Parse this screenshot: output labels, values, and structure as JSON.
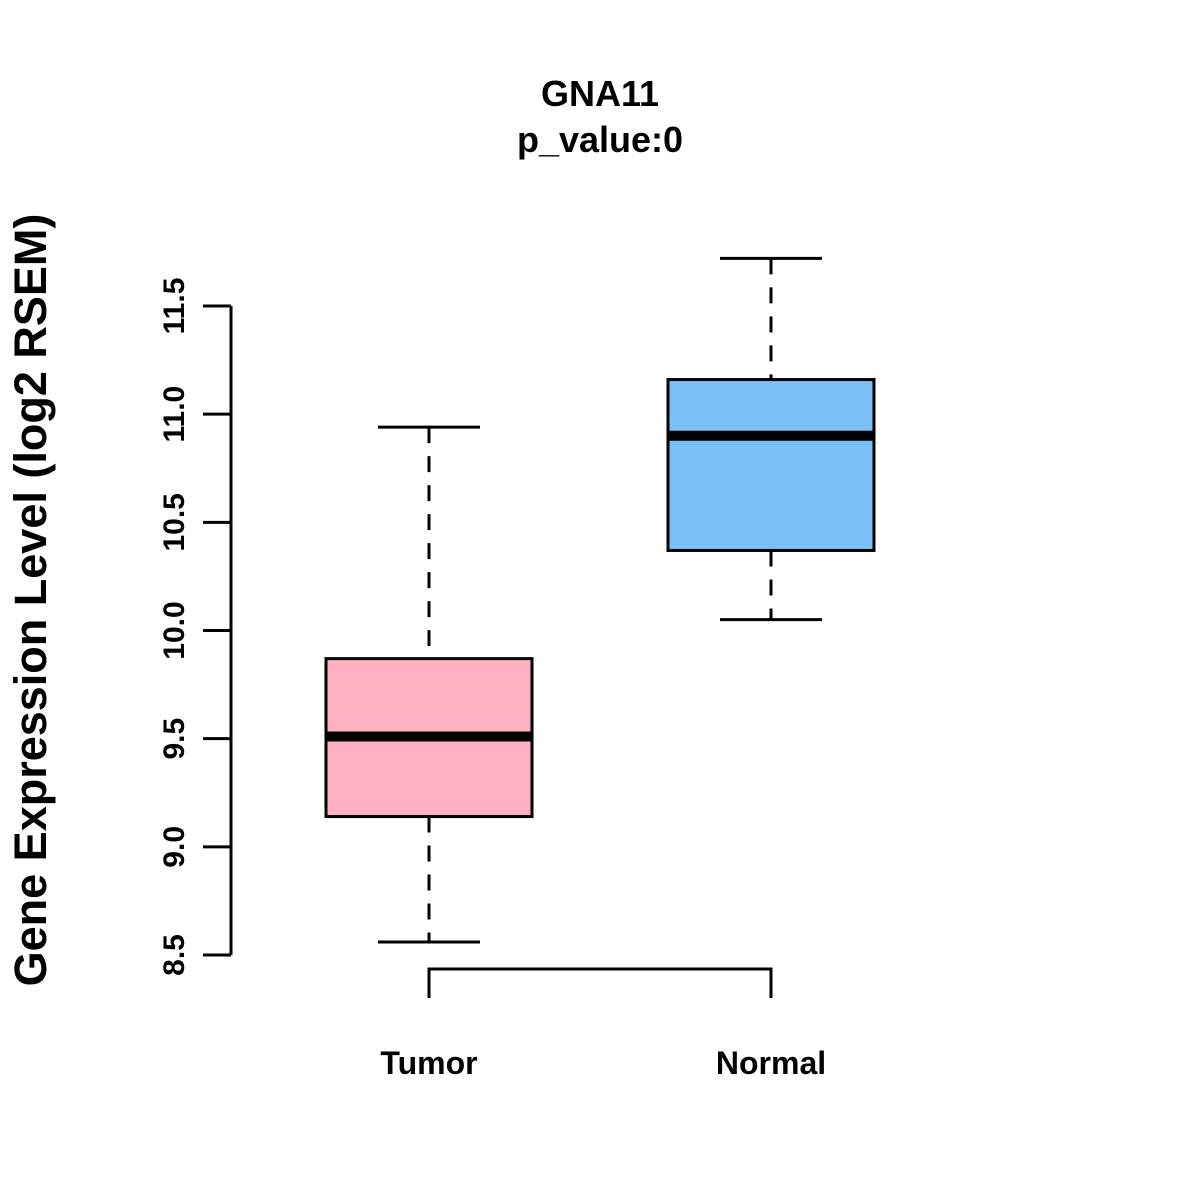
{
  "chart_data": {
    "type": "boxplot",
    "title": "GNA11",
    "subtitle": "p_value:0",
    "xlabel": "",
    "ylabel": "Gene Expression Level (log2 RSEM)",
    "ylim": [
      8.5,
      11.5
    ],
    "yticks": [
      "8.5",
      "9.0",
      "9.5",
      "10.0",
      "10.5",
      "11.0",
      "11.5"
    ],
    "grid": false,
    "legend": "none",
    "categories": [
      "Tumor",
      "Normal"
    ],
    "boxes": [
      {
        "name": "Tumor",
        "whisker_low": 8.56,
        "q1": 9.14,
        "median": 9.51,
        "q3": 9.87,
        "whisker_high": 10.94,
        "color": "#FFB0C1"
      },
      {
        "name": "Normal",
        "whisker_low": 10.05,
        "q1": 10.37,
        "median": 10.9,
        "q3": 11.16,
        "whisker_high": 11.72,
        "color": "#78C1F7"
      }
    ],
    "comparison": [
      "Tumor",
      "Normal"
    ]
  }
}
